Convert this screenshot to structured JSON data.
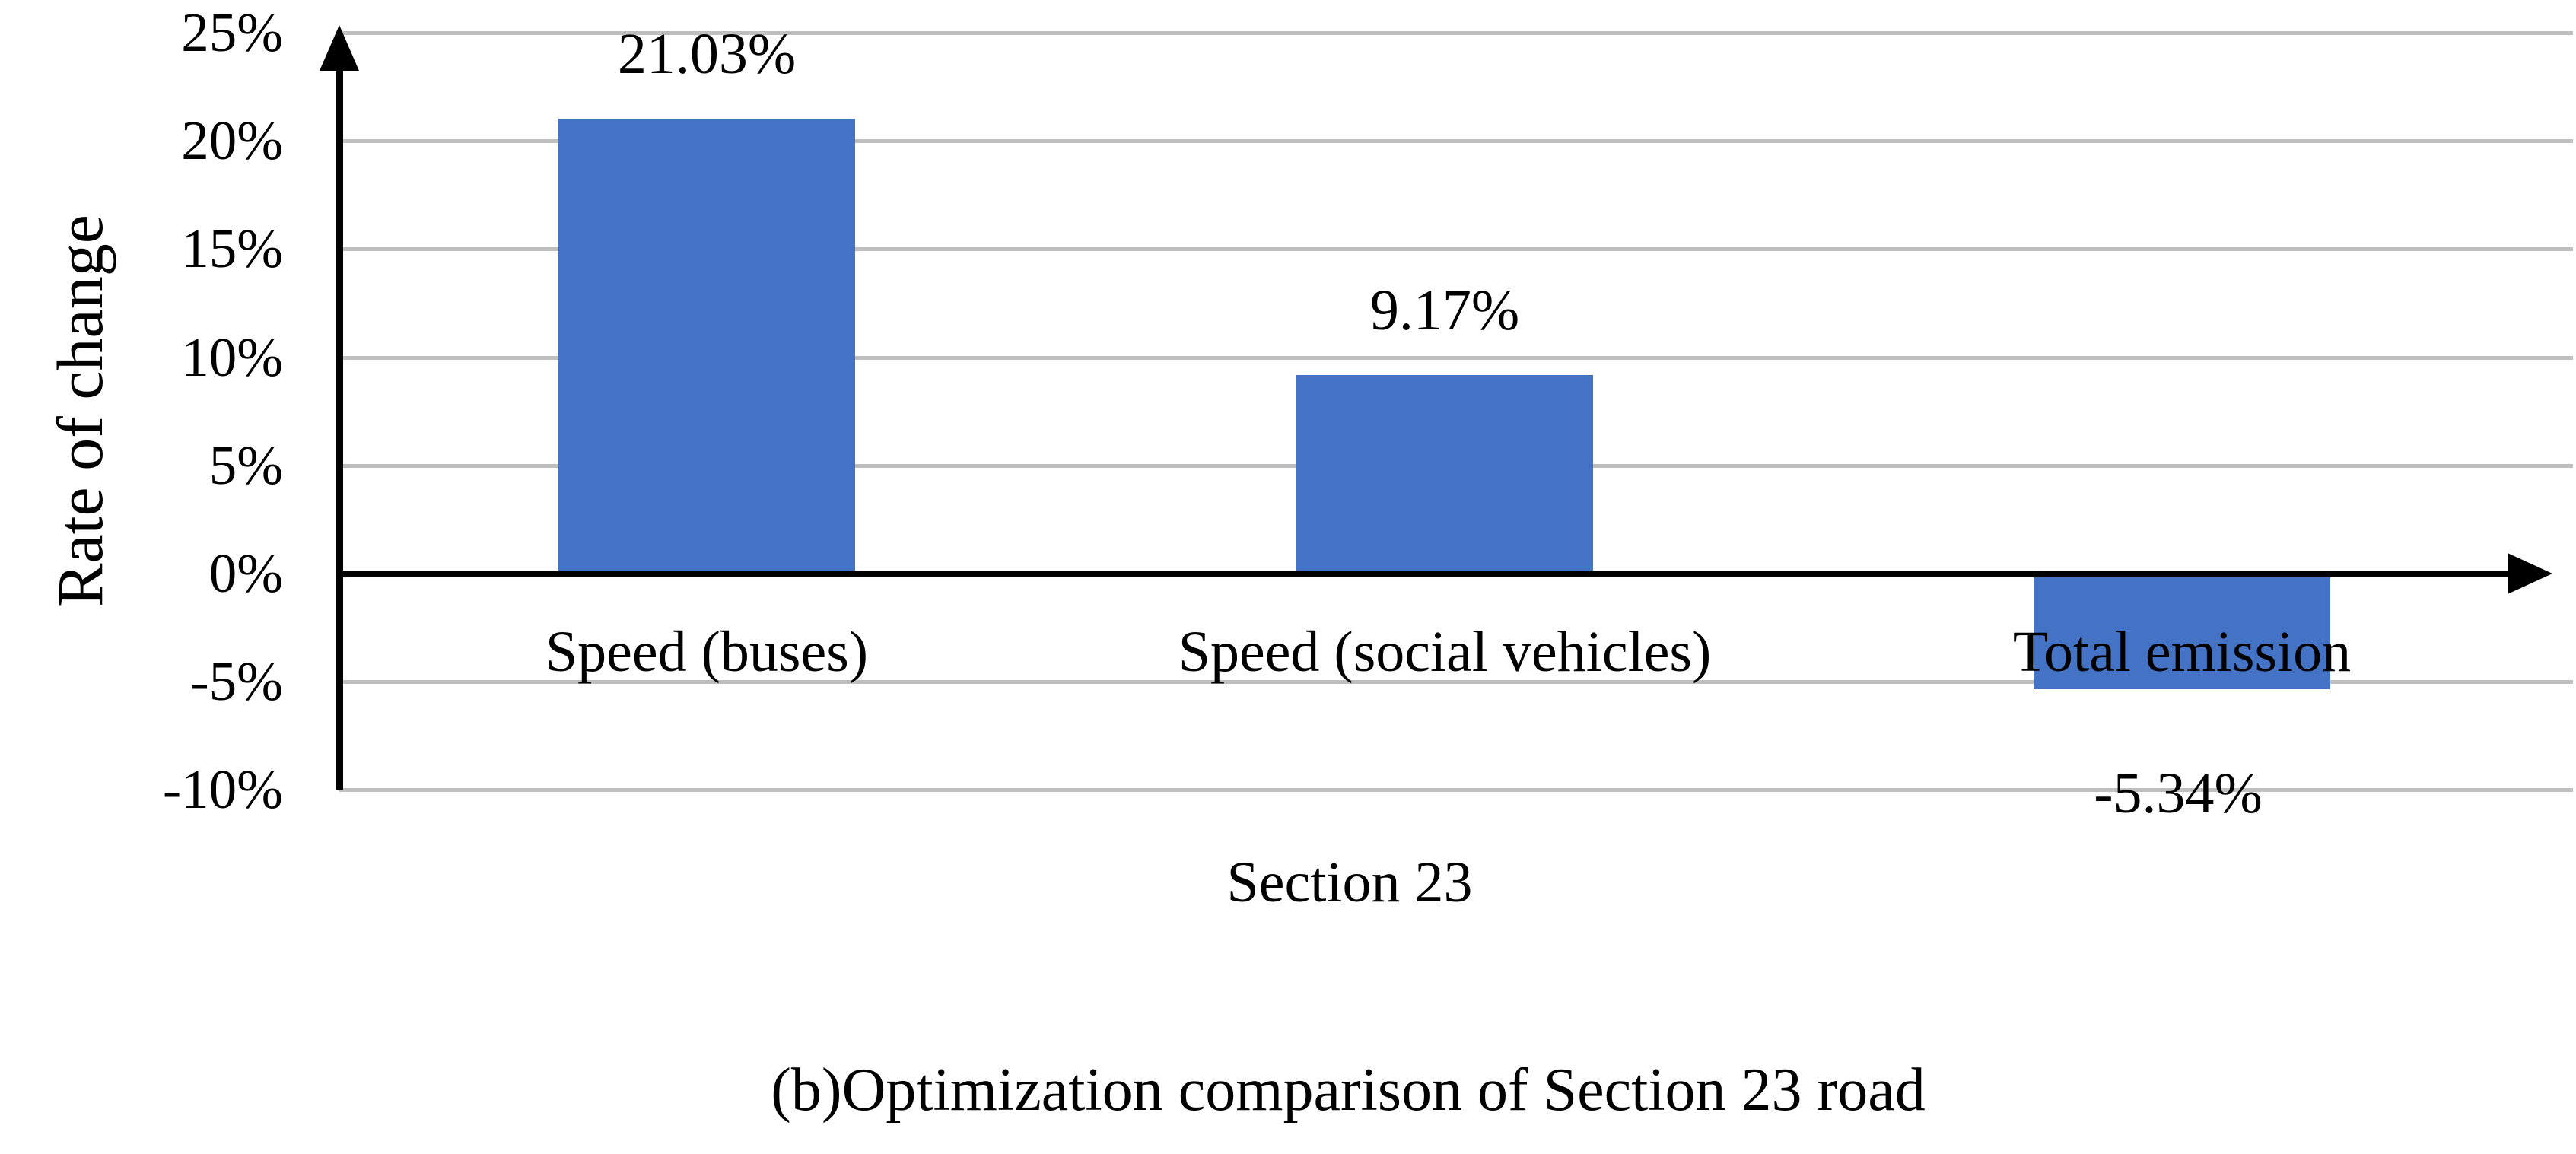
{
  "figure": {
    "caption": "(b)Optimization comparison of Section 23 road"
  },
  "chart_data": {
    "type": "bar",
    "title": "",
    "xlabel": "Section 23",
    "ylabel": "Rate of change",
    "categories": [
      "Speed (buses)",
      "Speed (social vehicles)",
      "Total emission"
    ],
    "values": [
      21.03,
      9.17,
      -5.34
    ],
    "data_labels": [
      "21.03%",
      "9.17%",
      "-5.34%"
    ],
    "ylim": [
      -10,
      25
    ],
    "ytick_step": 5,
    "yticks": [
      {
        "label": "25%",
        "value": 25
      },
      {
        "label": "20%",
        "value": 20
      },
      {
        "label": "15%",
        "value": 15
      },
      {
        "label": "10%",
        "value": 10
      },
      {
        "label": "5%",
        "value": 5
      },
      {
        "label": "0%",
        "value": 0
      },
      {
        "label": "-5%",
        "value": -5
      },
      {
        "label": "-10%",
        "value": -10
      }
    ],
    "grid": true,
    "legend_position": "none",
    "bar_color": "#4472C4",
    "gridline_color": "#BFBFBF",
    "axis_color": "#000000"
  }
}
